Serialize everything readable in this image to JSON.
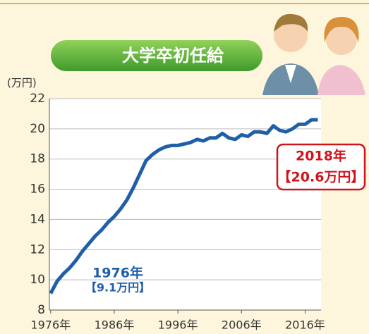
{
  "chart_data": {
    "type": "line",
    "title": "大学卒初任給",
    "y_axis_label": "(万円)",
    "x": [
      1976,
      1977,
      1978,
      1979,
      1980,
      1981,
      1982,
      1983,
      1984,
      1985,
      1986,
      1987,
      1988,
      1989,
      1990,
      1991,
      1992,
      1993,
      1994,
      1995,
      1996,
      1997,
      1998,
      1999,
      2000,
      2001,
      2002,
      2003,
      2004,
      2005,
      2006,
      2007,
      2008,
      2009,
      2010,
      2011,
      2012,
      2013,
      2014,
      2015,
      2016,
      2017,
      2018
    ],
    "values": [
      9.1,
      9.9,
      10.4,
      10.8,
      11.3,
      11.9,
      12.4,
      12.9,
      13.3,
      13.8,
      14.2,
      14.7,
      15.3,
      16.1,
      17.0,
      17.9,
      18.3,
      18.6,
      18.8,
      18.9,
      18.9,
      19.0,
      19.1,
      19.3,
      19.2,
      19.4,
      19.4,
      19.7,
      19.4,
      19.3,
      19.6,
      19.5,
      19.8,
      19.8,
      19.7,
      20.2,
      19.9,
      19.8,
      20.0,
      20.3,
      20.3,
      20.6,
      20.6
    ],
    "color": "#1f5fa8",
    "xlim": [
      1975.8,
      2018.5
    ],
    "ylim": [
      8,
      22
    ],
    "xticks": [
      {
        "value": 1976,
        "label": "1976年"
      },
      {
        "value": 1986,
        "label": "1986年"
      },
      {
        "value": 1996,
        "label": "1996年"
      },
      {
        "value": 2006,
        "label": "2006年"
      },
      {
        "value": 2016,
        "label": "2016年"
      }
    ],
    "yticks": [
      8,
      10,
      12,
      14,
      16,
      18,
      20,
      22
    ],
    "grid": true,
    "annotations": [
      {
        "text": [
          "1976年",
          "【9.1万円】"
        ],
        "color": "#1f5fa8"
      },
      {
        "text": [
          "2018年",
          "【20.6万円】"
        ],
        "color": "#d0121b"
      }
    ]
  }
}
